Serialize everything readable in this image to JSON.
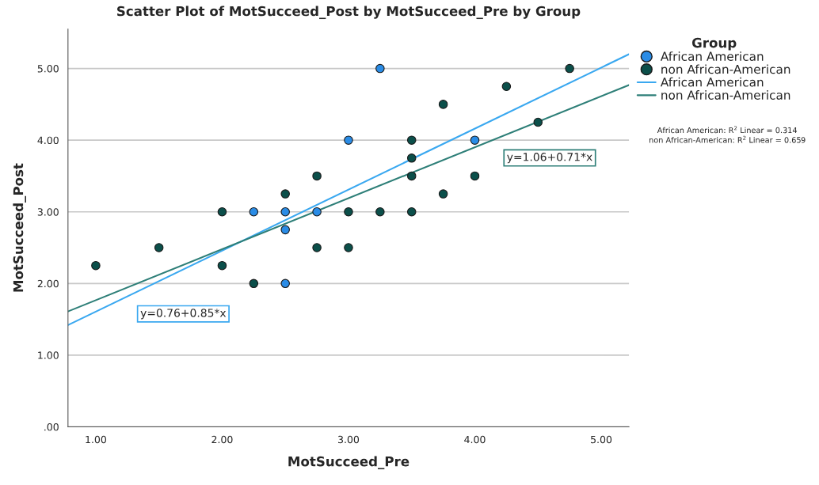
{
  "chart_data": {
    "type": "scatter",
    "title": "Scatter Plot of MotSucceed_Post by MotSucceed_Pre by Group",
    "xlabel": "MotSucceed_Pre",
    "ylabel": "MotSucceed_Post",
    "legend_title": "Group",
    "legend": "right",
    "grid": "y",
    "xlim": [
      0.78,
      5.22
    ],
    "ylim": [
      0,
      5.55
    ],
    "xticks": [
      {
        "value": 1,
        "label": "1.00"
      },
      {
        "value": 2,
        "label": "2.00"
      },
      {
        "value": 3,
        "label": "3.00"
      },
      {
        "value": 4,
        "label": "4.00"
      },
      {
        "value": 5,
        "label": "5.00"
      }
    ],
    "yticks": [
      {
        "value": 0,
        "label": ".00"
      },
      {
        "value": 1,
        "label": "1.00"
      },
      {
        "value": 2,
        "label": "2.00"
      },
      {
        "value": 3,
        "label": "3.00"
      },
      {
        "value": 4,
        "label": "4.00"
      },
      {
        "value": 5,
        "label": "5.00"
      }
    ],
    "series": [
      {
        "name": "African American",
        "marker": "circle",
        "color": "#2a8ce6",
        "x": [
          3.25,
          3,
          4,
          2.25,
          2.5,
          2.75,
          2.5,
          2.5
        ],
        "values": [
          5,
          4,
          4,
          3,
          3,
          3,
          2.75,
          2
        ]
      },
      {
        "name": "non African-American",
        "marker": "circle",
        "color": "#0b4f4a",
        "x": [
          1,
          1.5,
          2,
          2,
          2.25,
          2.5,
          2.75,
          2.75,
          3,
          3,
          3.25,
          3.5,
          3.5,
          3.5,
          3.5,
          3.75,
          3.75,
          4,
          4.25,
          4.5,
          4.75
        ],
        "values": [
          2.25,
          2.5,
          3,
          2.25,
          2,
          3.25,
          3.5,
          2.5,
          3,
          2.5,
          3,
          4,
          3.75,
          3.5,
          3,
          4.5,
          3.25,
          3.5,
          4.75,
          4.25,
          5
        ]
      },
      {
        "name": "African American",
        "type": "line",
        "color": "#3aa8f0",
        "x": [
          0.78,
          5.22
        ],
        "values": [
          1.42,
          5.2
        ]
      },
      {
        "name": "non African-American",
        "type": "line",
        "color": "#2e7f78",
        "x": [
          0.78,
          5.22
        ],
        "values": [
          1.61,
          4.77
        ]
      }
    ],
    "annotations": [
      {
        "text": "y=0.76+0.85*x",
        "x": 1.3,
        "y": 1.865
      },
      {
        "text": "y=1.06+0.71*x",
        "x": 4.2,
        "y": 4.042
      },
      "African American: R$^{2}$ Linear = 0.314\nnon African-American: R$^{2}$ Linear = 0.659"
    ]
  }
}
